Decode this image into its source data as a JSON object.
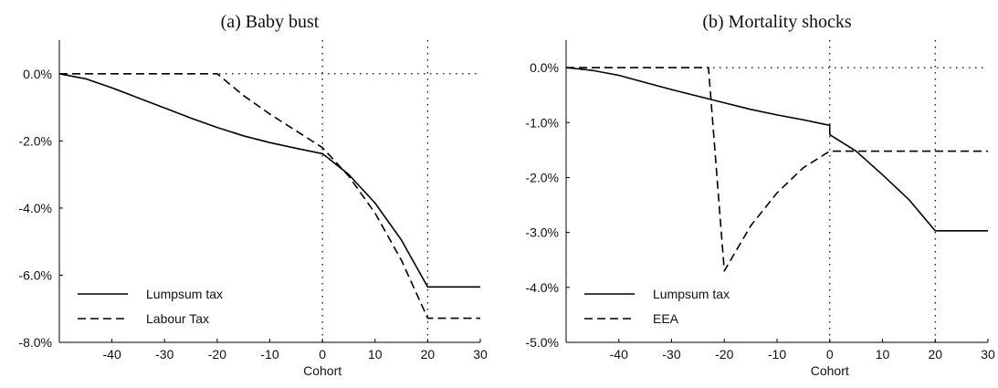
{
  "chart_data": [
    {
      "type": "line",
      "title": "(a) Baby bust",
      "xlabel": "Cohort",
      "ylabel": "",
      "xlim": [
        -50,
        30
      ],
      "ylim": [
        -8.0,
        1.0
      ],
      "xticks": [
        -40,
        -30,
        -20,
        -10,
        0,
        10,
        20,
        30
      ],
      "xtick_labels": [
        "-40",
        "-30",
        "-20",
        "-10",
        "0",
        "10",
        "20",
        "30"
      ],
      "yticks": [
        0,
        -2,
        -4,
        -6,
        -8
      ],
      "ytick_labels": [
        "0.0%",
        "-2.0%",
        "-4.0%",
        "-6.0%",
        "-8.0%"
      ],
      "grid": false,
      "legend_position": "bottom-left",
      "reference_lines": {
        "horizontal": [
          0
        ],
        "vertical": [
          0,
          20
        ]
      },
      "series": [
        {
          "name": "Lumpsum tax",
          "style": "solid",
          "x": [
            -50,
            -45,
            -40,
            -35,
            -30,
            -25,
            -20,
            -15,
            -10,
            -5,
            0,
            5,
            10,
            15,
            20,
            25,
            30
          ],
          "y": [
            0.0,
            -0.15,
            -0.42,
            -0.72,
            -1.02,
            -1.32,
            -1.6,
            -1.85,
            -2.05,
            -2.22,
            -2.38,
            -3.0,
            -3.85,
            -4.95,
            -6.35,
            -6.35,
            -6.35
          ]
        },
        {
          "name": "Labour Tax",
          "style": "dashed",
          "x": [
            -50,
            -45,
            -40,
            -35,
            -30,
            -25,
            -20,
            -15,
            -10,
            -5,
            0,
            5,
            10,
            15,
            20,
            25,
            30
          ],
          "y": [
            0.0,
            0.0,
            0.0,
            0.0,
            0.0,
            0.0,
            0.0,
            -0.65,
            -1.2,
            -1.7,
            -2.2,
            -3.05,
            -4.15,
            -5.55,
            -7.28,
            -7.28,
            -7.28
          ]
        }
      ]
    },
    {
      "type": "line",
      "title": "(b) Mortality shocks",
      "xlabel": "Cohort",
      "ylabel": "",
      "xlim": [
        -50,
        30
      ],
      "ylim": [
        -5.0,
        0.5
      ],
      "xticks": [
        -40,
        -30,
        -20,
        -10,
        0,
        10,
        20,
        30
      ],
      "xtick_labels": [
        "-40",
        "-30",
        "-20",
        "-10",
        "0",
        "10",
        "20",
        "30"
      ],
      "yticks": [
        0,
        -1,
        -2,
        -3,
        -4,
        -5
      ],
      "ytick_labels": [
        "0.0%",
        "-1.0%",
        "-2.0%",
        "-3.0%",
        "-4.0%",
        "-5.0%"
      ],
      "grid": false,
      "legend_position": "bottom-left",
      "reference_lines": {
        "horizontal": [
          0
        ],
        "vertical": [
          0,
          20
        ]
      },
      "series": [
        {
          "name": "Lumpsum tax",
          "style": "solid",
          "x": [
            -50,
            -45,
            -40,
            -35,
            -30,
            -25,
            -20,
            -15,
            -10,
            -5,
            0,
            0,
            5,
            10,
            15,
            20,
            25,
            30
          ],
          "y": [
            0.0,
            -0.05,
            -0.14,
            -0.27,
            -0.4,
            -0.52,
            -0.64,
            -0.76,
            -0.86,
            -0.95,
            -1.05,
            -1.22,
            -1.52,
            -1.95,
            -2.4,
            -2.97,
            -2.97,
            -2.97
          ]
        },
        {
          "name": "EEA",
          "style": "dashed",
          "x": [
            -50,
            -40,
            -30,
            -23,
            -20,
            -15,
            -10,
            -5,
            0,
            5,
            10,
            20,
            30
          ],
          "y": [
            0.0,
            0.0,
            0.0,
            0.0,
            -3.7,
            -2.88,
            -2.28,
            -1.82,
            -1.52,
            -1.52,
            -1.52,
            -1.52,
            -1.52
          ]
        }
      ]
    }
  ]
}
